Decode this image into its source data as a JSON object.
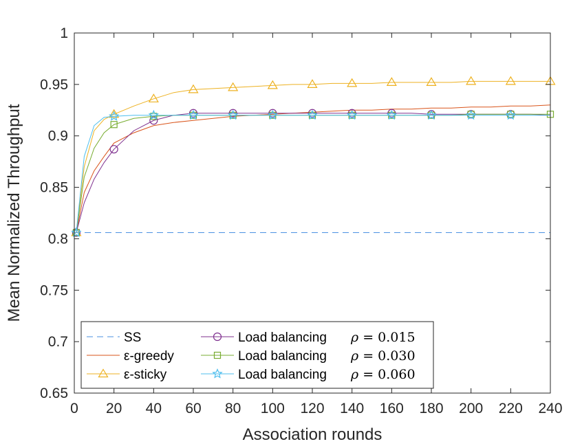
{
  "chart_data": {
    "type": "line",
    "title": "",
    "xlabel": "Association rounds",
    "ylabel": "Mean Normalized Throughput",
    "xlim": [
      0,
      240
    ],
    "ylim": [
      0.65,
      1
    ],
    "xticks": [
      0,
      20,
      40,
      60,
      80,
      100,
      120,
      140,
      160,
      180,
      200,
      220,
      240
    ],
    "yticks": [
      0.65,
      0.7,
      0.75,
      0.8,
      0.85,
      0.9,
      0.95,
      1
    ],
    "xtick_labels": [
      "0",
      "20",
      "40",
      "60",
      "80",
      "100",
      "120",
      "140",
      "160",
      "180",
      "200",
      "220",
      "240"
    ],
    "ytick_labels": [
      "0.65",
      "0.7",
      "0.75",
      "0.8",
      "0.85",
      "0.9",
      "0.95",
      "1"
    ],
    "grid": false,
    "legend_position": "bottom-left",
    "series": [
      {
        "name": "SS",
        "color": "#4a90e2",
        "style": "dashed",
        "marker": "none",
        "x": [
          0,
          240
        ],
        "y": [
          0.806,
          0.806
        ]
      },
      {
        "name": "ε-greedy",
        "color": "#d95319",
        "style": "solid",
        "marker": "none",
        "x": [
          0,
          1,
          5,
          10,
          15,
          20,
          30,
          40,
          50,
          60,
          70,
          80,
          90,
          100,
          110,
          120,
          130,
          140,
          150,
          160,
          170,
          180,
          190,
          200,
          210,
          220,
          230,
          240
        ],
        "y": [
          0.805,
          0.806,
          0.845,
          0.866,
          0.88,
          0.893,
          0.903,
          0.91,
          0.913,
          0.915,
          0.917,
          0.919,
          0.92,
          0.921,
          0.922,
          0.923,
          0.924,
          0.925,
          0.925,
          0.926,
          0.926,
          0.927,
          0.927,
          0.928,
          0.928,
          0.929,
          0.929,
          0.93
        ]
      },
      {
        "name": "ε-sticky",
        "color": "#edb120",
        "style": "solid",
        "marker": "triangle",
        "marker_x": [
          1,
          20,
          40,
          60,
          80,
          100,
          120,
          140,
          160,
          180,
          200,
          220,
          240
        ],
        "x": [
          0,
          1,
          5,
          10,
          15,
          20,
          30,
          40,
          50,
          60,
          70,
          80,
          90,
          100,
          110,
          120,
          130,
          140,
          150,
          160,
          170,
          180,
          190,
          200,
          210,
          220,
          230,
          240
        ],
        "y": [
          0.805,
          0.806,
          0.87,
          0.905,
          0.916,
          0.921,
          0.929,
          0.936,
          0.942,
          0.945,
          0.946,
          0.947,
          0.948,
          0.949,
          0.95,
          0.95,
          0.951,
          0.951,
          0.951,
          0.952,
          0.952,
          0.952,
          0.952,
          0.953,
          0.953,
          0.953,
          0.953,
          0.953
        ]
      },
      {
        "name": "Load balancing",
        "rho": "0.015",
        "color": "#7e2f8e",
        "style": "solid",
        "marker": "circle",
        "marker_x": [
          1,
          20,
          40,
          60,
          80,
          100,
          120,
          140,
          160,
          180,
          200,
          220
        ],
        "x": [
          0,
          1,
          5,
          10,
          15,
          20,
          30,
          40,
          50,
          60,
          70,
          80,
          90,
          100,
          110,
          120,
          130,
          140,
          150,
          160,
          170,
          180,
          190,
          200,
          210,
          220,
          230,
          240
        ],
        "y": [
          0.805,
          0.806,
          0.835,
          0.858,
          0.874,
          0.887,
          0.905,
          0.915,
          0.92,
          0.922,
          0.922,
          0.922,
          0.922,
          0.922,
          0.922,
          0.922,
          0.922,
          0.922,
          0.922,
          0.922,
          0.922,
          0.921,
          0.921,
          0.921,
          0.921,
          0.921,
          0.921,
          0.92
        ]
      },
      {
        "name": "Load balancing",
        "rho": "0.030",
        "color": "#77ac30",
        "style": "solid",
        "marker": "square",
        "marker_x": [
          1,
          20,
          40,
          60,
          80,
          100,
          120,
          140,
          160,
          180,
          200,
          220,
          240
        ],
        "x": [
          0,
          1,
          5,
          10,
          15,
          20,
          30,
          40,
          50,
          60,
          70,
          80,
          90,
          100,
          110,
          120,
          130,
          140,
          150,
          160,
          170,
          180,
          190,
          200,
          210,
          220,
          230,
          240
        ],
        "y": [
          0.805,
          0.806,
          0.86,
          0.888,
          0.903,
          0.911,
          0.917,
          0.919,
          0.92,
          0.92,
          0.92,
          0.92,
          0.92,
          0.92,
          0.92,
          0.92,
          0.92,
          0.92,
          0.92,
          0.92,
          0.92,
          0.92,
          0.92,
          0.921,
          0.921,
          0.921,
          0.921,
          0.921
        ]
      },
      {
        "name": "Load balancing",
        "rho": "0.060",
        "color": "#4dbeee",
        "style": "solid",
        "marker": "star",
        "marker_x": [
          1,
          20,
          40,
          60,
          80,
          100,
          120,
          140,
          160,
          180,
          200,
          220
        ],
        "x": [
          0,
          1,
          5,
          10,
          15,
          20,
          30,
          40,
          50,
          60,
          70,
          80,
          90,
          100,
          110,
          120,
          130,
          140,
          150,
          160,
          170,
          180,
          190,
          200,
          210,
          220,
          230,
          240
        ],
        "y": [
          0.805,
          0.806,
          0.88,
          0.91,
          0.918,
          0.919,
          0.92,
          0.92,
          0.92,
          0.92,
          0.92,
          0.92,
          0.92,
          0.92,
          0.92,
          0.92,
          0.92,
          0.92,
          0.92,
          0.92,
          0.92,
          0.92,
          0.92,
          0.92,
          0.92,
          0.92,
          0.92,
          0.92
        ]
      }
    ]
  },
  "legend": {
    "rho_symbol": "ρ",
    "rho_equals": " = ",
    "items": [
      {
        "label": "SS"
      },
      {
        "label": "ε-greedy"
      },
      {
        "label": "ε-sticky"
      },
      {
        "label": "Load balancing",
        "rho": "0.015"
      },
      {
        "label": "Load balancing",
        "rho": "0.030"
      },
      {
        "label": "Load balancing",
        "rho": "0.060"
      }
    ]
  }
}
